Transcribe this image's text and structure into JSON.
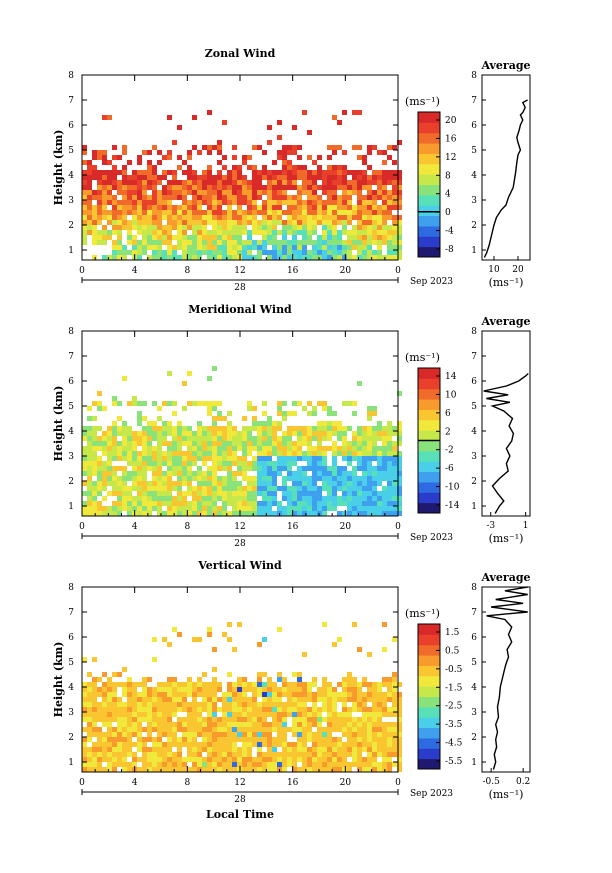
{
  "chart_data": [
    {
      "type": "heatmap",
      "title": "Zonal Wind",
      "ylabel": "Height (km)",
      "x_ticks": [
        "0",
        "4",
        "8",
        "12",
        "16",
        "20",
        "0"
      ],
      "y_ticks": [
        "1",
        "2",
        "3",
        "4",
        "5",
        "6",
        "7",
        "8"
      ],
      "date_label": "28",
      "month_label": "Sep 2023",
      "xlim": [
        0,
        24
      ],
      "ylim": [
        0.6,
        8.0
      ],
      "colorbar": {
        "unit": "(ms⁻¹)",
        "ticks": [
          "20",
          "16",
          "12",
          "8",
          "4",
          "0",
          "-4",
          "-8"
        ],
        "range": [
          -10,
          22
        ],
        "zero_line": 0
      },
      "profile": {
        "title": "Average",
        "unit": "(ms⁻¹)",
        "x_ticks": [
          "10",
          "20"
        ],
        "xlim": [
          5,
          25
        ],
        "points": [
          [
            6,
            0.7
          ],
          [
            7,
            0.9
          ],
          [
            8,
            1.2
          ],
          [
            9,
            1.6
          ],
          [
            10,
            2.0
          ],
          [
            11,
            2.3
          ],
          [
            13,
            2.6
          ],
          [
            15,
            2.8
          ],
          [
            16,
            3.1
          ],
          [
            17,
            3.3
          ],
          [
            18,
            3.5
          ],
          [
            18.5,
            3.8
          ],
          [
            19,
            4.1
          ],
          [
            19.5,
            4.5
          ],
          [
            20,
            4.8
          ],
          [
            21,
            5.0
          ],
          [
            20,
            5.3
          ],
          [
            19.5,
            5.5
          ],
          [
            20.5,
            5.8
          ],
          [
            21,
            6.0
          ],
          [
            22,
            6.2
          ],
          [
            21,
            6.4
          ],
          [
            22,
            6.5
          ],
          [
            23,
            6.7
          ],
          [
            22,
            6.9
          ],
          [
            24,
            7.0
          ]
        ]
      },
      "fields": {
        "base": 6,
        "gain": 14,
        "spread": 2.2,
        "blob": 0.4
      }
    },
    {
      "type": "heatmap",
      "title": "Meridional Wind",
      "ylabel": "Height (km)",
      "x_ticks": [
        "0",
        "4",
        "8",
        "12",
        "16",
        "20",
        "0"
      ],
      "y_ticks": [
        "1",
        "2",
        "3",
        "4",
        "5",
        "6",
        "7",
        "8"
      ],
      "date_label": "28",
      "month_label": "Sep 2023",
      "xlim": [
        0,
        24
      ],
      "ylim": [
        0.6,
        8.0
      ],
      "colorbar": {
        "unit": "(ms⁻¹)",
        "ticks": [
          "14",
          "10",
          "6",
          "2",
          "-2",
          "-6",
          "-10",
          "-14"
        ],
        "range": [
          -16,
          16
        ],
        "zero_line": 0
      },
      "profile": {
        "title": "Average",
        "unit": "(ms⁻¹)",
        "x_ticks": [
          "-3",
          "1"
        ],
        "xlim": [
          -4,
          1.5
        ],
        "points": [
          [
            -2.5,
            0.7
          ],
          [
            -2.0,
            1.0
          ],
          [
            -1.5,
            1.2
          ],
          [
            -2.2,
            1.5
          ],
          [
            -2.8,
            1.8
          ],
          [
            -2.0,
            2.1
          ],
          [
            -1.0,
            2.4
          ],
          [
            -1.2,
            2.7
          ],
          [
            -0.8,
            3.0
          ],
          [
            -1.2,
            3.3
          ],
          [
            -0.6,
            3.6
          ],
          [
            -0.4,
            3.9
          ],
          [
            -0.9,
            4.2
          ],
          [
            -0.5,
            4.5
          ],
          [
            -1.5,
            4.8
          ],
          [
            -2.8,
            5.0
          ],
          [
            -0.8,
            5.15
          ],
          [
            -3.5,
            5.3
          ],
          [
            -1.0,
            5.45
          ],
          [
            -3.8,
            5.6
          ],
          [
            -1.2,
            5.8
          ],
          [
            0.2,
            6.0
          ],
          [
            1.0,
            6.2
          ],
          [
            1.3,
            6.3
          ]
        ]
      },
      "fields": {
        "base": 0,
        "gain": -8,
        "spread": 4,
        "blob": 0.5
      }
    },
    {
      "type": "heatmap",
      "title": "Vertical Wind",
      "ylabel": "Height (km)",
      "xlabel": "Local Time",
      "x_ticks": [
        "0",
        "4",
        "8",
        "12",
        "16",
        "20",
        "0"
      ],
      "y_ticks": [
        "1",
        "2",
        "3",
        "4",
        "5",
        "6",
        "7",
        "8"
      ],
      "date_label": "28",
      "month_label": "Sep 2023",
      "xlim": [
        0,
        24
      ],
      "ylim": [
        0.6,
        8.0
      ],
      "colorbar": {
        "unit": "(ms⁻¹)",
        "ticks": [
          "1.5",
          "0.5",
          "-0.5",
          "-1.5",
          "-2.5",
          "-3.5",
          "-4.5",
          "-5.5"
        ],
        "range": [
          -6,
          2
        ],
        "zero_line": null
      },
      "profile": {
        "title": "Average",
        "unit": "(ms⁻¹)",
        "x_ticks": [
          "-0.5",
          "0.2"
        ],
        "xlim": [
          -0.7,
          0.35
        ],
        "points": [
          [
            -0.45,
            0.7
          ],
          [
            -0.4,
            1.0
          ],
          [
            -0.43,
            1.3
          ],
          [
            -0.38,
            1.6
          ],
          [
            -0.4,
            1.9
          ],
          [
            -0.36,
            2.2
          ],
          [
            -0.4,
            2.5
          ],
          [
            -0.34,
            2.8
          ],
          [
            -0.36,
            3.2
          ],
          [
            -0.32,
            3.6
          ],
          [
            -0.3,
            4.0
          ],
          [
            -0.26,
            4.3
          ],
          [
            -0.22,
            4.6
          ],
          [
            -0.18,
            4.9
          ],
          [
            -0.12,
            5.2
          ],
          [
            -0.15,
            5.5
          ],
          [
            -0.05,
            5.8
          ],
          [
            -0.12,
            6.1
          ],
          [
            -0.05,
            6.4
          ],
          [
            -0.2,
            6.7
          ],
          [
            -0.6,
            6.85
          ],
          [
            0.3,
            7.0
          ],
          [
            -0.5,
            7.2
          ],
          [
            0.2,
            7.35
          ],
          [
            -0.4,
            7.5
          ],
          [
            0.3,
            7.7
          ],
          [
            -0.2,
            7.85
          ],
          [
            0.3,
            8.0
          ]
        ]
      },
      "fields": {
        "base": -0.4,
        "gain": 0.3,
        "spread": 0.5,
        "blob": 0.6
      }
    }
  ]
}
